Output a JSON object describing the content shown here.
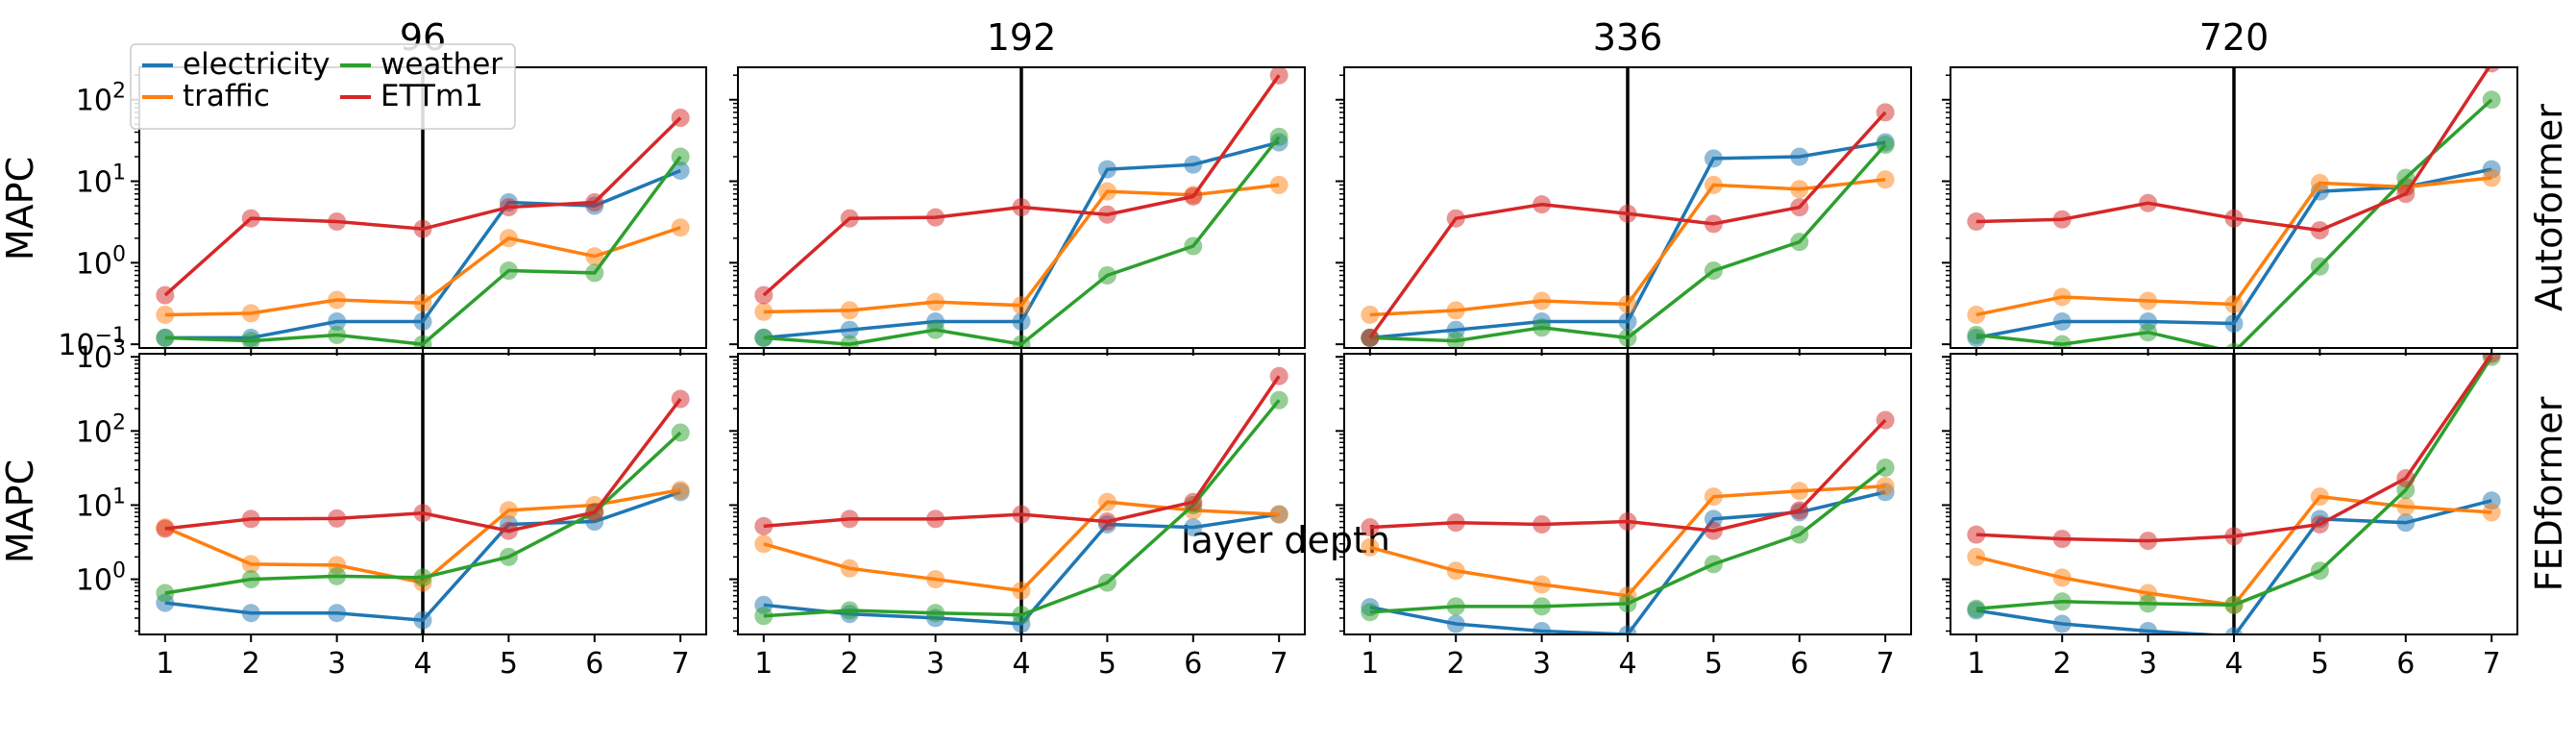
{
  "chart_data": {
    "type": "line",
    "xlabel": "layer depth",
    "ylabel": "MAPC",
    "yscale": "log",
    "grid": false,
    "legend_placement": "top-left",
    "x": [
      1,
      2,
      3,
      4,
      5,
      6,
      7
    ],
    "x_ticks": [
      "1",
      "2",
      "3",
      "4",
      "5",
      "6",
      "7"
    ],
    "vline_x": 4,
    "columns": [
      "96",
      "192",
      "336",
      "720"
    ],
    "rows": [
      {
        "label": "Autoformer",
        "ylim": [
          0.09,
          250
        ],
        "yticks": [
          {
            "v": 0.1,
            "base": "10",
            "exp": "−1"
          },
          {
            "v": 1,
            "base": "10",
            "exp": "0"
          },
          {
            "v": 10,
            "base": "10",
            "exp": "1"
          },
          {
            "v": 100,
            "base": "10",
            "exp": "2"
          }
        ]
      },
      {
        "label": "FEDformer",
        "ylim": [
          0.18,
          1100
        ],
        "yticks": [
          {
            "v": 1,
            "base": "10",
            "exp": "0"
          },
          {
            "v": 10,
            "base": "10",
            "exp": "1"
          },
          {
            "v": 100,
            "base": "10",
            "exp": "2"
          },
          {
            "v": 1000,
            "base": "10",
            "exp": "3"
          }
        ]
      }
    ],
    "series_meta": [
      {
        "name": "electricity",
        "color": "#1f77b4"
      },
      {
        "name": "traffic",
        "color": "#ff7f0e"
      },
      {
        "name": "weather",
        "color": "#2ca02c"
      },
      {
        "name": "ETTm1",
        "color": "#d62728"
      }
    ],
    "panels": [
      {
        "row": 0,
        "col": 0,
        "series": [
          {
            "name": "electricity",
            "values": [
              0.12,
              0.12,
              0.19,
              0.19,
              5.5,
              5.0,
              13.5
            ]
          },
          {
            "name": "traffic",
            "values": [
              0.23,
              0.24,
              0.35,
              0.32,
              2.0,
              1.2,
              2.7
            ]
          },
          {
            "name": "weather",
            "values": [
              0.12,
              0.11,
              0.13,
              0.1,
              0.8,
              0.75,
              20.0
            ]
          },
          {
            "name": "ETTm1",
            "values": [
              0.4,
              3.5,
              3.2,
              2.6,
              4.8,
              5.5,
              60.0
            ]
          }
        ]
      },
      {
        "row": 0,
        "col": 1,
        "series": [
          {
            "name": "electricity",
            "values": [
              0.12,
              0.15,
              0.19,
              0.19,
              14.0,
              16.0,
              30.0
            ]
          },
          {
            "name": "traffic",
            "values": [
              0.25,
              0.26,
              0.33,
              0.3,
              7.5,
              6.8,
              9.0
            ]
          },
          {
            "name": "weather",
            "values": [
              0.12,
              0.1,
              0.15,
              0.1,
              0.7,
              1.6,
              35.0
            ]
          },
          {
            "name": "ETTm1",
            "values": [
              0.4,
              3.5,
              3.6,
              4.8,
              3.9,
              6.5,
              200.0
            ]
          }
        ]
      },
      {
        "row": 0,
        "col": 2,
        "series": [
          {
            "name": "electricity",
            "values": [
              0.12,
              0.15,
              0.19,
              0.19,
              19.0,
              20.0,
              30.0
            ]
          },
          {
            "name": "traffic",
            "values": [
              0.23,
              0.26,
              0.34,
              0.31,
              9.0,
              8.0,
              10.5
            ]
          },
          {
            "name": "weather",
            "values": [
              0.12,
              0.11,
              0.16,
              0.12,
              0.8,
              1.8,
              28.0
            ]
          },
          {
            "name": "ETTm1",
            "values": [
              0.12,
              3.5,
              5.2,
              4.0,
              3.0,
              4.8,
              70.0
            ]
          }
        ]
      },
      {
        "row": 0,
        "col": 3,
        "series": [
          {
            "name": "electricity",
            "values": [
              0.12,
              0.19,
              0.19,
              0.18,
              7.5,
              8.5,
              14.0
            ]
          },
          {
            "name": "traffic",
            "values": [
              0.23,
              0.38,
              0.34,
              0.31,
              9.5,
              8.5,
              11.0
            ]
          },
          {
            "name": "weather",
            "values": [
              0.13,
              0.1,
              0.14,
              0.08,
              0.9,
              11.0,
              100.0
            ]
          },
          {
            "name": "ETTm1",
            "values": [
              3.2,
              3.4,
              5.4,
              3.5,
              2.5,
              7.0,
              280.0
            ]
          }
        ]
      },
      {
        "row": 1,
        "col": 0,
        "series": [
          {
            "name": "electricity",
            "values": [
              0.48,
              0.35,
              0.35,
              0.28,
              5.5,
              6.0,
              15.0
            ]
          },
          {
            "name": "traffic",
            "values": [
              5.0,
              1.6,
              1.55,
              0.9,
              8.5,
              10.0,
              16.0
            ]
          },
          {
            "name": "weather",
            "values": [
              0.65,
              1.0,
              1.1,
              1.05,
              2.0,
              8.0,
              95.0
            ]
          },
          {
            "name": "ETTm1",
            "values": [
              4.8,
              6.5,
              6.6,
              7.8,
              4.5,
              8.0,
              270.0
            ]
          }
        ]
      },
      {
        "row": 1,
        "col": 1,
        "series": [
          {
            "name": "electricity",
            "values": [
              0.45,
              0.34,
              0.3,
              0.25,
              5.5,
              5.0,
              7.5
            ]
          },
          {
            "name": "traffic",
            "values": [
              3.0,
              1.4,
              1.0,
              0.7,
              11.0,
              8.5,
              7.5
            ]
          },
          {
            "name": "weather",
            "values": [
              0.32,
              0.38,
              0.35,
              0.33,
              0.9,
              10.0,
              260.0
            ]
          },
          {
            "name": "ETTm1",
            "values": [
              5.2,
              6.5,
              6.5,
              7.5,
              6.0,
              11.0,
              550.0
            ]
          }
        ]
      },
      {
        "row": 1,
        "col": 2,
        "series": [
          {
            "name": "electricity",
            "values": [
              0.42,
              0.25,
              0.2,
              0.18,
              6.5,
              8.0,
              15.0
            ]
          },
          {
            "name": "traffic",
            "values": [
              2.7,
              1.3,
              0.85,
              0.6,
              13.0,
              15.5,
              18.0
            ]
          },
          {
            "name": "weather",
            "values": [
              0.36,
              0.43,
              0.43,
              0.47,
              1.6,
              4.0,
              32.0
            ]
          },
          {
            "name": "ETTm1",
            "values": [
              5.0,
              5.8,
              5.5,
              6.0,
              4.5,
              8.5,
              140.0
            ]
          }
        ]
      },
      {
        "row": 1,
        "col": 3,
        "series": [
          {
            "name": "electricity",
            "values": [
              0.38,
              0.25,
              0.2,
              0.17,
              6.5,
              5.8,
              11.5
            ]
          },
          {
            "name": "traffic",
            "values": [
              2.0,
              1.05,
              0.65,
              0.45,
              13.0,
              9.5,
              8.0
            ]
          },
          {
            "name": "weather",
            "values": [
              0.4,
              0.5,
              0.47,
              0.45,
              1.3,
              16.0,
              1000.0
            ]
          },
          {
            "name": "ETTm1",
            "values": [
              4.0,
              3.5,
              3.3,
              3.8,
              5.5,
              23.0,
              1100.0
            ]
          }
        ]
      }
    ]
  }
}
